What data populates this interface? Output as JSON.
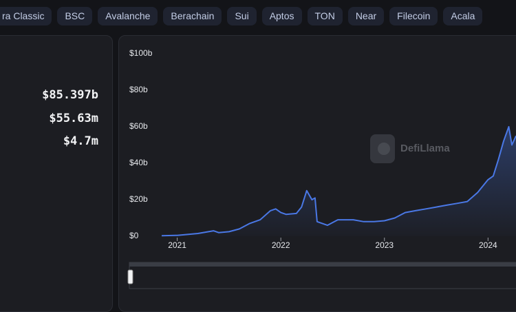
{
  "chain_tabs": [
    "ra Classic",
    "BSC",
    "Avalanche",
    "Berachain",
    "Sui",
    "Aptos",
    "TON",
    "Near",
    "Filecoin",
    "Acala"
  ],
  "stats": [
    "$85.397b",
    "$55.63m",
    "$4.7m"
  ],
  "watermark": "DefiLlama",
  "chart_data": {
    "type": "line",
    "color": "#4a78e6",
    "x": [
      2020.85,
      2021.0,
      2021.2,
      2021.35,
      2021.4,
      2021.5,
      2021.6,
      2021.7,
      2021.8,
      2021.9,
      2021.95,
      2022.0,
      2022.05,
      2022.15,
      2022.2,
      2022.25,
      2022.3,
      2022.33,
      2022.35,
      2022.45,
      2022.55,
      2022.7,
      2022.8,
      2022.9,
      2023.0,
      2023.1,
      2023.2,
      2023.3,
      2023.4,
      2023.5,
      2023.6,
      2023.7,
      2023.8,
      2023.9,
      2024.0,
      2024.05,
      2024.1,
      2024.15,
      2024.2,
      2024.23,
      2024.27
    ],
    "values": [
      0.3,
      0.5,
      1.5,
      3,
      2,
      2.5,
      4,
      7,
      9,
      14,
      15,
      13,
      12,
      12.5,
      16,
      25,
      20,
      21,
      8,
      6,
      9,
      9,
      8,
      8,
      8.5,
      10,
      13,
      14,
      15,
      16,
      17,
      18,
      19,
      24,
      31,
      33,
      42,
      52,
      60,
      50,
      55
    ],
    "xlim": [
      2020.83,
      2024.27
    ],
    "ylim": [
      0,
      100
    ],
    "xticks": [
      2021,
      2022,
      2023,
      2024
    ],
    "yticks": [
      {
        "value": 0,
        "label": "$0"
      },
      {
        "value": 20,
        "label": "$20b"
      },
      {
        "value": 40,
        "label": "$40b"
      },
      {
        "value": 60,
        "label": "$60b"
      },
      {
        "value": 80,
        "label": "$80b"
      },
      {
        "value": 100,
        "label": "$100b"
      }
    ]
  }
}
